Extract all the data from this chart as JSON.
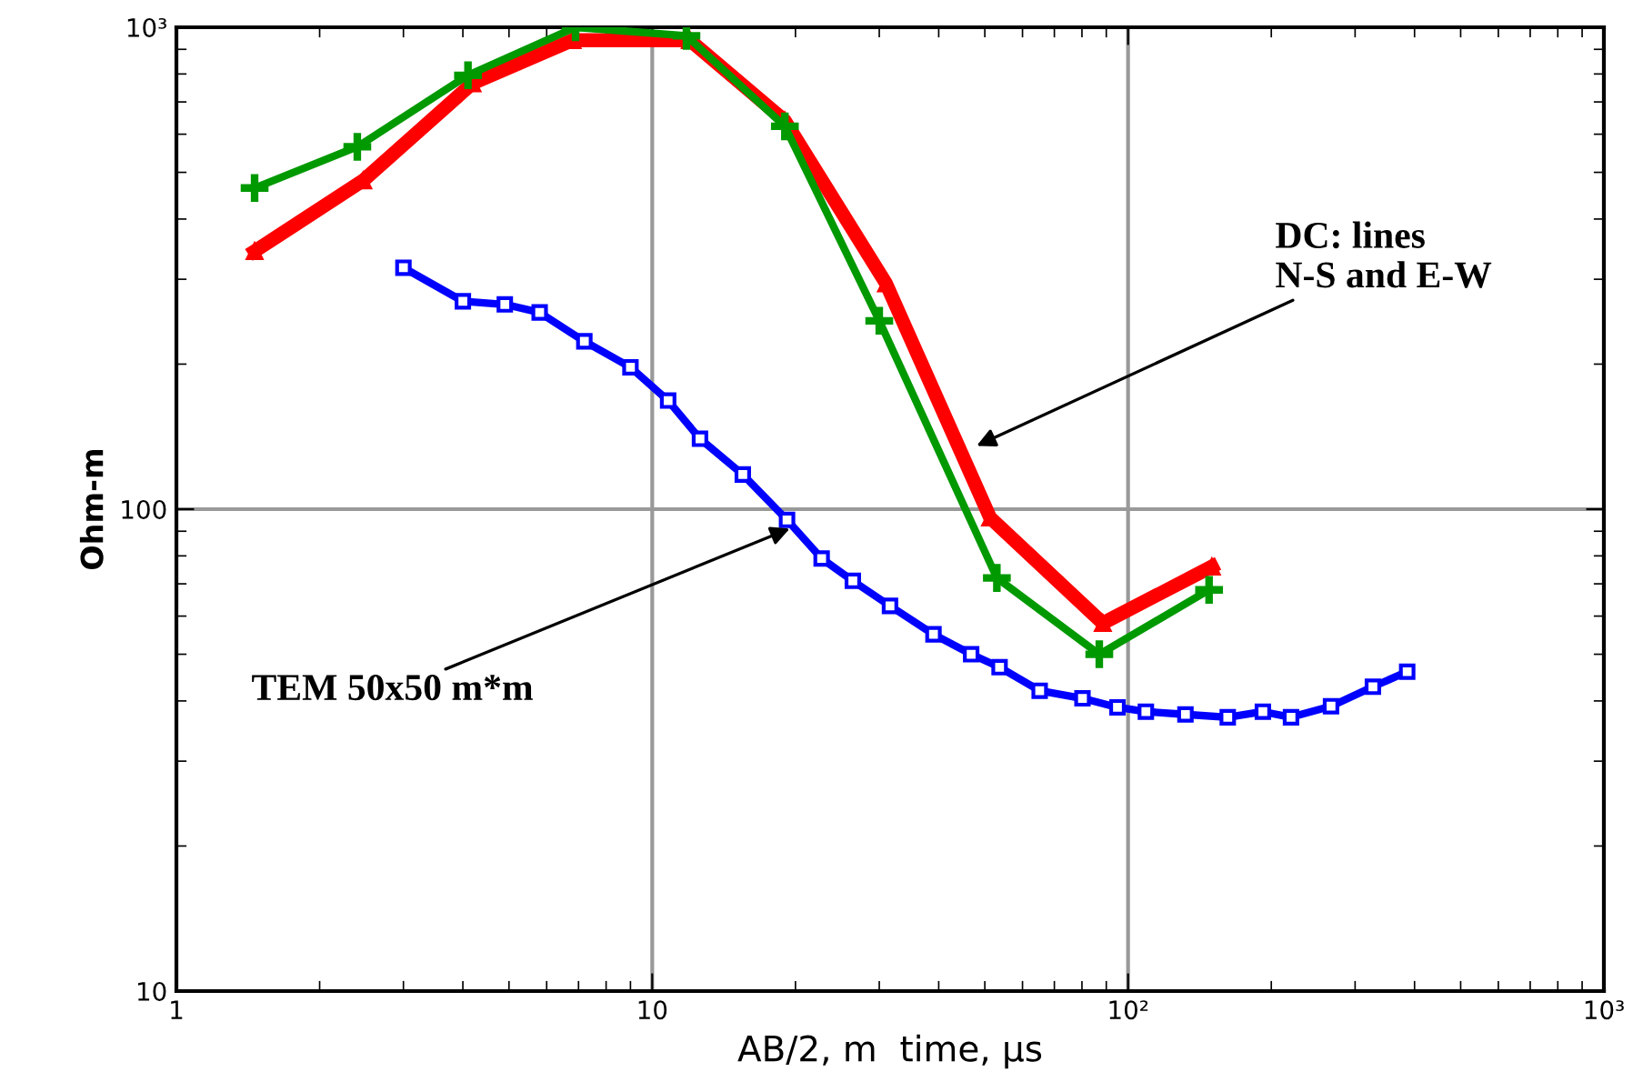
{
  "chart_data": {
    "type": "line",
    "xlabel": "AB/2, m  time, µs",
    "ylabel": "Ohm-m",
    "log": "xy",
    "grid": true,
    "line_style": "solid",
    "xlim": [
      1,
      1000
    ],
    "xticks": [
      1,
      10,
      {
        "value": 100,
        "label": "10²"
      },
      {
        "value": 1000,
        "label": "10³"
      }
    ],
    "ylim": [
      10,
      1000
    ],
    "yticks": [
      10,
      100,
      {
        "value": 1000,
        "label": "10³"
      }
    ],
    "series": [
      {
        "color": "#ff0000",
        "marker": "triangle",
        "x": [
          1.46,
          2.47,
          4.19,
          6.8,
          12.0,
          19.0,
          31,
          51.3,
          88.5,
          150
        ],
        "values": [
          343,
          481,
          765,
          940,
          940,
          640,
          294,
          96,
          58,
          76
        ]
      },
      {
        "color": "#009900",
        "marker": "cross",
        "x": [
          1.46,
          2.4,
          4.1,
          6.9,
          11.8,
          19.0,
          30,
          53,
          87,
          148
        ],
        "values": [
          464,
          565,
          795,
          1000,
          960,
          623,
          246,
          72,
          50,
          68
        ]
      },
      {
        "color": "#0000ff",
        "marker": "square",
        "x": [
          3.0,
          4.0,
          4.9,
          5.8,
          7.2,
          9.0,
          10.8,
          12.6,
          15.5,
          19.2,
          22.7,
          26.4,
          31.6,
          39,
          46.8,
          53.7,
          65.2,
          80.2,
          95,
          109,
          132,
          162,
          192,
          220,
          267,
          327,
          386
        ],
        "values": [
          317,
          270,
          266,
          256,
          223,
          197,
          168,
          140,
          118,
          95,
          79,
          71,
          63,
          55,
          50,
          47,
          42,
          40.5,
          38.8,
          38,
          37.5,
          37,
          38,
          37,
          39,
          42.8,
          46
        ]
      }
    ],
    "annotations": [
      {
        "text": "DC: lines\nN-S and E-W",
        "x": 47,
        "y": 134
      },
      {
        "text": "TEM 50x50 m*m",
        "x": 19.9,
        "y": 92
      }
    ]
  }
}
